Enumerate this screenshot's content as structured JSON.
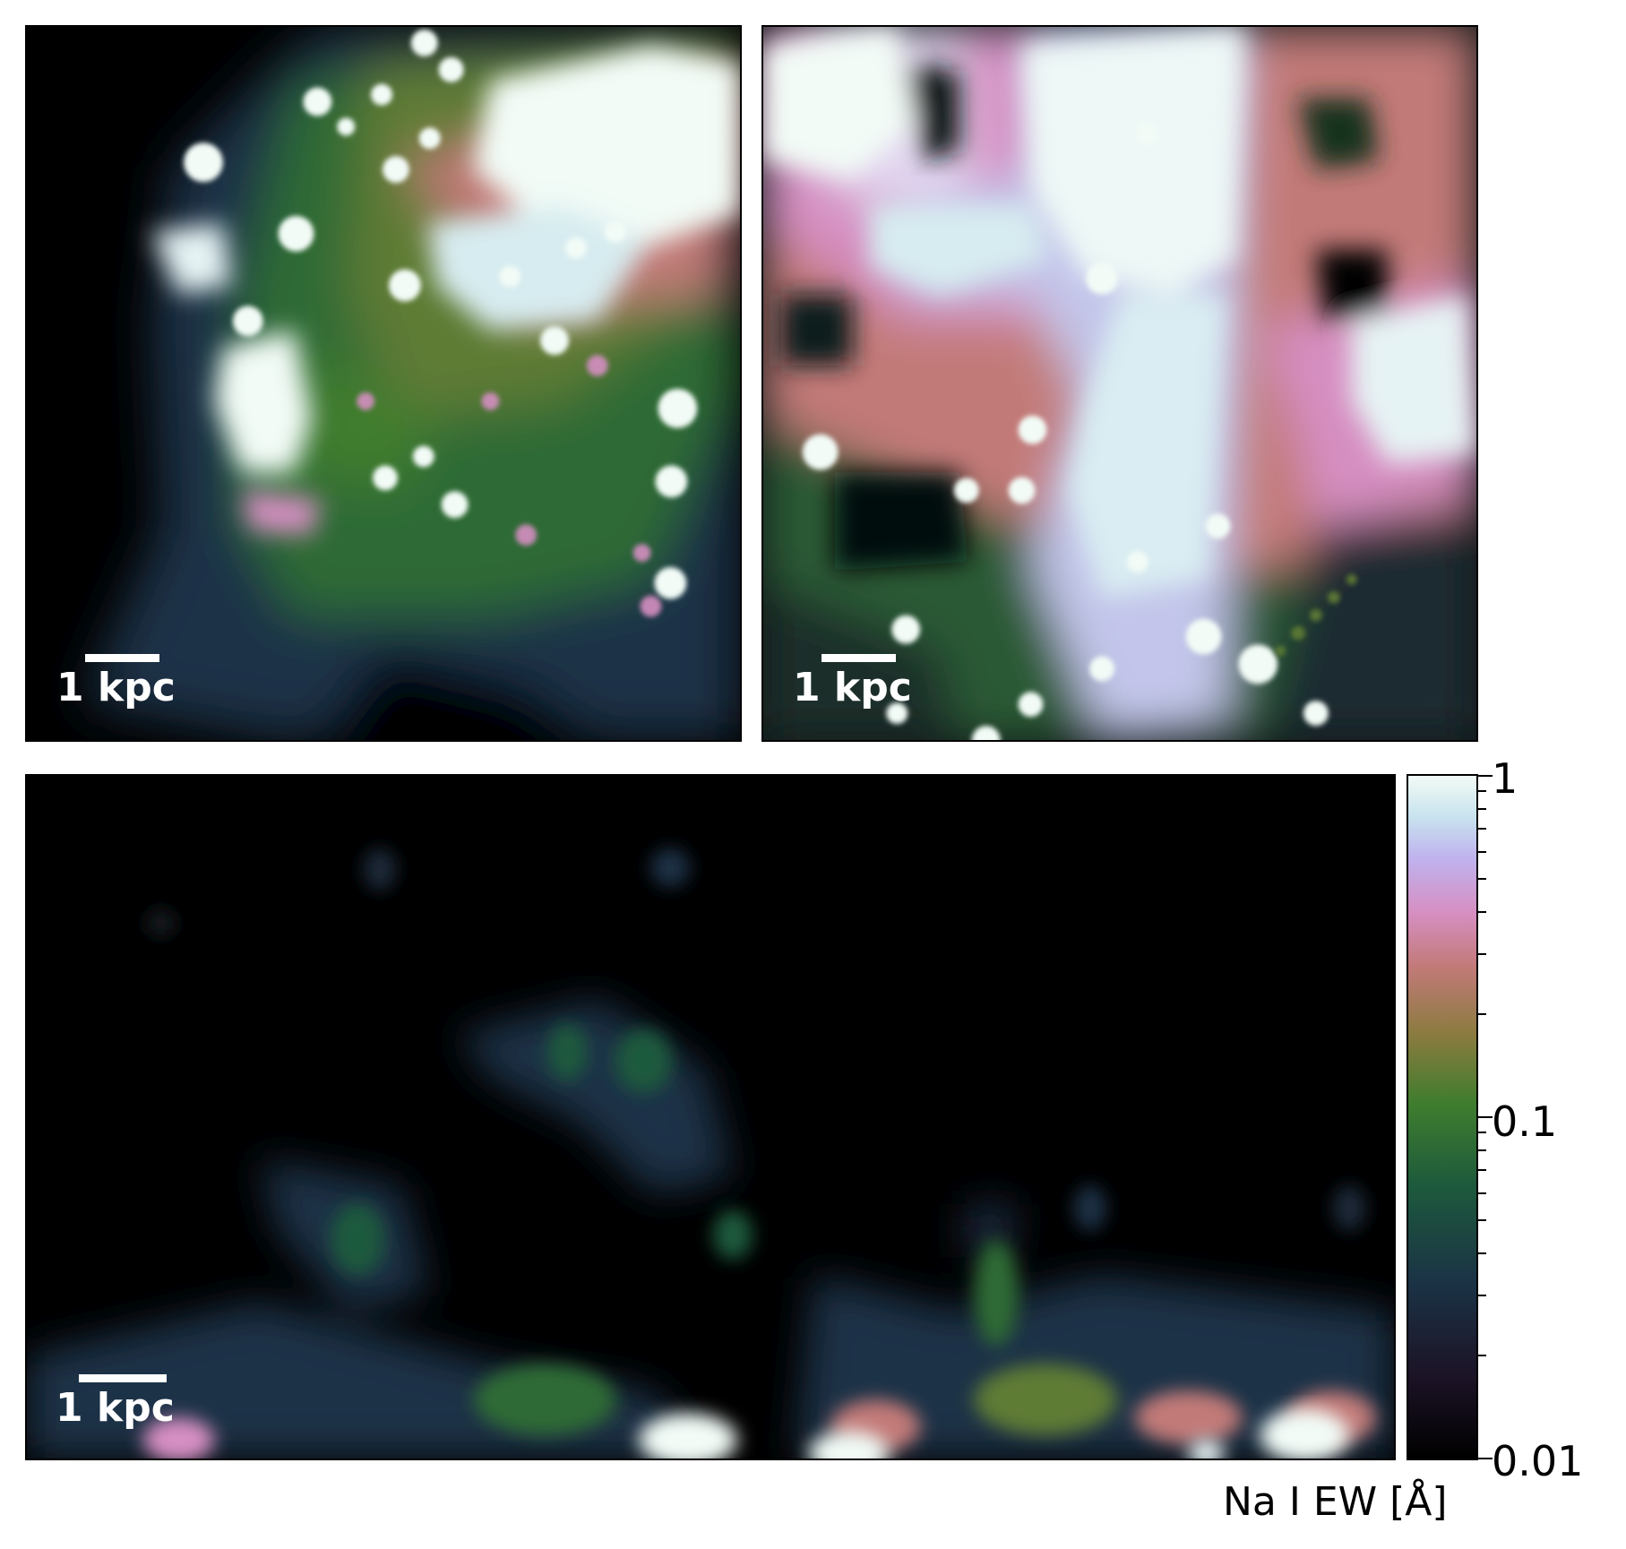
{
  "panels": {
    "top_left": {
      "scalebar_label": "1 kpc"
    },
    "top_right": {
      "scalebar_label": "1 kpc"
    },
    "bottom": {
      "scalebar_label": "1 kpc"
    }
  },
  "colorbar": {
    "label": "Na I EW [Å]",
    "scale": "log",
    "range": [
      0.01,
      1
    ],
    "tick_labels": {
      "max": "1",
      "mid": "0.1",
      "min": "0.01"
    },
    "colormap": "cubehelix"
  },
  "colors": {
    "background": "#000000",
    "dark_teal": "#1b3346",
    "green": "#3f7d2e",
    "olive": "#8a7b3f",
    "pink": "#d68fc2",
    "lavender": "#bfb3ee",
    "white": "#f2fbf6"
  }
}
